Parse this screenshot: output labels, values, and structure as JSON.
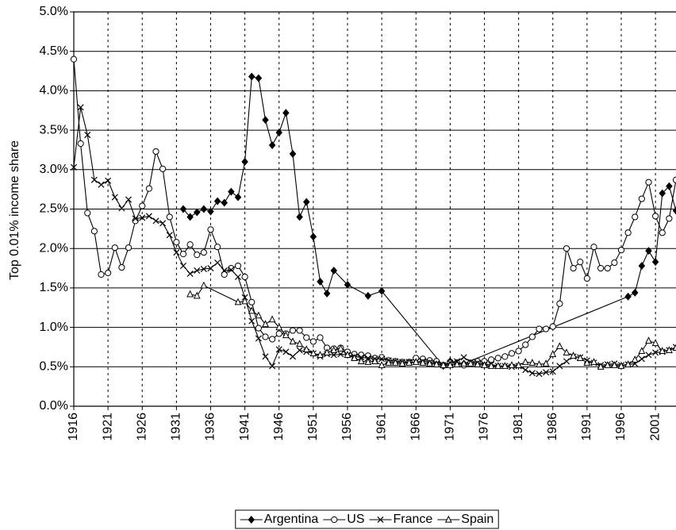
{
  "chart_data": {
    "type": "line",
    "y_label": "Top 0.01% income share",
    "xlim": [
      1916,
      2004
    ],
    "xticks": [
      1916,
      1921,
      1926,
      1931,
      1936,
      1941,
      1946,
      1951,
      1956,
      1961,
      1966,
      1971,
      1976,
      1981,
      1986,
      1991,
      1996,
      2001
    ],
    "ylim": [
      0,
      5
    ],
    "yticks": [
      {
        "value": 0,
        "label": "0.0%"
      },
      {
        "value": 0.5,
        "label": "0.5%"
      },
      {
        "value": 1,
        "label": "1.0%"
      },
      {
        "value": 1.5,
        "label": "1.5%"
      },
      {
        "value": 2,
        "label": "2.0%"
      },
      {
        "value": 2.5,
        "label": "2.5%"
      },
      {
        "value": 3,
        "label": "3.0%"
      },
      {
        "value": 3.5,
        "label": "3.5%"
      },
      {
        "value": 4,
        "label": "4.0%"
      },
      {
        "value": 4.5,
        "label": "4.5%"
      },
      {
        "value": 5,
        "label": "5.0%"
      }
    ],
    "grid": true,
    "legend": "bottom",
    "series": [
      {
        "name": "Argentina",
        "color": "#000000",
        "marker": "diamond",
        "x": [
          1932,
          1933,
          1934,
          1935,
          1936,
          1937,
          1938,
          1939,
          1940,
          1941,
          1942,
          1943,
          1944,
          1945,
          1946,
          1947,
          1948,
          1949,
          1950,
          1951,
          1952,
          1953,
          1954,
          1956,
          1959,
          1961,
          1970,
          1971,
          1972,
          1973,
          1997,
          1998,
          1999,
          2000,
          2001,
          2002,
          2003,
          2004
        ],
        "values": [
          2.5,
          2.4,
          2.46,
          2.5,
          2.47,
          2.6,
          2.58,
          2.72,
          2.65,
          3.1,
          4.18,
          4.16,
          3.63,
          3.31,
          3.47,
          3.72,
          3.2,
          2.4,
          2.59,
          2.15,
          1.58,
          1.43,
          1.72,
          1.54,
          1.4,
          1.46,
          0.51,
          0.57,
          0.55,
          0.54,
          1.39,
          1.44,
          1.78,
          1.97,
          1.83,
          2.7,
          2.79,
          2.48
        ]
      },
      {
        "name": "US",
        "color": "#000000",
        "marker": "circle",
        "x": [
          1916,
          1917,
          1918,
          1919,
          1920,
          1921,
          1922,
          1923,
          1924,
          1925,
          1926,
          1927,
          1928,
          1929,
          1930,
          1931,
          1932,
          1933,
          1934,
          1935,
          1936,
          1937,
          1938,
          1939,
          1940,
          1941,
          1942,
          1943,
          1944,
          1945,
          1946,
          1947,
          1948,
          1949,
          1950,
          1951,
          1952,
          1953,
          1954,
          1955,
          1956,
          1957,
          1958,
          1959,
          1960,
          1961,
          1962,
          1963,
          1964,
          1965,
          1966,
          1967,
          1968,
          1969,
          1970,
          1971,
          1972,
          1973,
          1974,
          1975,
          1976,
          1977,
          1978,
          1979,
          1980,
          1981,
          1982,
          1983,
          1984,
          1985,
          1986,
          1987,
          1988,
          1989,
          1990,
          1991,
          1992,
          1993,
          1994,
          1995,
          1996,
          1997,
          1998,
          1999,
          2000,
          2001,
          2002,
          2003,
          2004
        ],
        "values": [
          4.4,
          3.33,
          2.45,
          2.22,
          1.67,
          1.69,
          2.01,
          1.76,
          2.01,
          2.35,
          2.54,
          2.76,
          3.23,
          3.01,
          2.4,
          2.08,
          1.93,
          2.05,
          1.92,
          1.95,
          2.24,
          2.02,
          1.67,
          1.75,
          1.78,
          1.64,
          1.32,
          0.99,
          0.88,
          0.85,
          0.92,
          0.92,
          0.96,
          0.96,
          0.87,
          0.82,
          0.87,
          0.74,
          0.73,
          0.74,
          0.69,
          0.66,
          0.65,
          0.64,
          0.61,
          0.62,
          0.58,
          0.57,
          0.56,
          0.56,
          0.61,
          0.6,
          0.58,
          0.57,
          0.52,
          0.55,
          0.55,
          0.52,
          0.55,
          0.57,
          0.57,
          0.59,
          0.61,
          0.63,
          0.67,
          0.7,
          0.78,
          0.88,
          0.98,
          0.98,
          1.01,
          1.3,
          2.0,
          1.75,
          1.83,
          1.62,
          2.02,
          1.75,
          1.75,
          1.82,
          1.98,
          2.2,
          2.4,
          2.63,
          2.84,
          2.41,
          2.2,
          2.38,
          2.87
        ]
      },
      {
        "name": "France",
        "color": "#000000",
        "marker": "cross",
        "x": [
          1916,
          1917,
          1918,
          1919,
          1920,
          1921,
          1922,
          1923,
          1924,
          1925,
          1926,
          1927,
          1928,
          1929,
          1930,
          1931,
          1932,
          1933,
          1934,
          1935,
          1936,
          1937,
          1938,
          1939,
          1940,
          1941,
          1942,
          1943,
          1944,
          1945,
          1946,
          1947,
          1948,
          1949,
          1950,
          1951,
          1952,
          1953,
          1954,
          1955,
          1956,
          1957,
          1958,
          1959,
          1960,
          1961,
          1962,
          1963,
          1964,
          1965,
          1966,
          1967,
          1968,
          1969,
          1970,
          1971,
          1972,
          1973,
          1974,
          1975,
          1976,
          1977,
          1978,
          1979,
          1980,
          1981,
          1982,
          1983,
          1984,
          1985,
          1986,
          1987,
          1988,
          1989,
          1990,
          1991,
          1992,
          1993,
          1994,
          1995,
          1996,
          1997,
          1998,
          1999,
          2000,
          2001,
          2002,
          2003,
          2004
        ],
        "values": [
          3.03,
          3.79,
          3.44,
          2.87,
          2.81,
          2.86,
          2.65,
          2.51,
          2.62,
          2.38,
          2.39,
          2.41,
          2.35,
          2.32,
          2.17,
          1.95,
          1.78,
          1.68,
          1.72,
          1.74,
          1.75,
          1.82,
          1.72,
          1.73,
          1.64,
          1.38,
          1.08,
          0.86,
          0.63,
          0.51,
          0.72,
          0.69,
          0.63,
          0.71,
          0.69,
          0.67,
          0.63,
          0.66,
          0.65,
          0.66,
          0.65,
          0.63,
          0.62,
          0.61,
          0.6,
          0.6,
          0.58,
          0.57,
          0.56,
          0.56,
          0.56,
          0.57,
          0.56,
          0.54,
          0.52,
          0.55,
          0.57,
          0.62,
          0.56,
          0.55,
          0.53,
          0.53,
          0.51,
          0.51,
          0.5,
          0.51,
          0.46,
          0.42,
          0.41,
          0.43,
          0.44,
          0.51,
          0.57,
          0.63,
          0.62,
          0.58,
          0.55,
          0.52,
          0.53,
          0.54,
          0.52,
          0.53,
          0.54,
          0.6,
          0.65,
          0.68,
          0.69,
          0.71,
          0.75
        ]
      },
      {
        "name": "Spain",
        "color": "#000000",
        "marker": "triangle",
        "x": [
          1933,
          1934,
          1935,
          1940,
          1941,
          1942,
          1943,
          1944,
          1945,
          1946,
          1947,
          1948,
          1949,
          1950,
          1951,
          1952,
          1953,
          1954,
          1955,
          1956,
          1957,
          1958,
          1959,
          1960,
          1961,
          1962,
          1963,
          1964,
          1965,
          1966,
          1967,
          1968,
          1969,
          1970,
          1971,
          1972,
          1973,
          1974,
          1975,
          1976,
          1977,
          1978,
          1979,
          1980,
          1981,
          1982,
          1983,
          1984,
          1985,
          1986,
          1987,
          1988,
          1989,
          1990,
          1991,
          1992,
          1993,
          1994,
          1995,
          1996,
          1997,
          1998,
          1999,
          2000,
          2001,
          2002,
          2003,
          2004
        ],
        "values": [
          1.42,
          1.4,
          1.53,
          1.32,
          1.33,
          1.21,
          1.15,
          1.04,
          1.1,
          1.0,
          0.9,
          0.82,
          0.79,
          0.72,
          0.67,
          0.65,
          0.68,
          0.71,
          0.73,
          0.65,
          0.61,
          0.57,
          0.56,
          0.57,
          0.52,
          0.55,
          0.55,
          0.54,
          0.55,
          0.56,
          0.55,
          0.54,
          0.53,
          0.52,
          0.52,
          0.53,
          0.54,
          0.54,
          0.53,
          0.52,
          0.51,
          0.51,
          0.51,
          0.52,
          0.52,
          0.56,
          0.55,
          0.53,
          0.54,
          0.66,
          0.76,
          0.68,
          0.64,
          0.61,
          0.55,
          0.56,
          0.5,
          0.52,
          0.52,
          0.51,
          0.53,
          0.59,
          0.7,
          0.83,
          0.8,
          0.7,
          0.71,
          0.74
        ]
      }
    ]
  }
}
